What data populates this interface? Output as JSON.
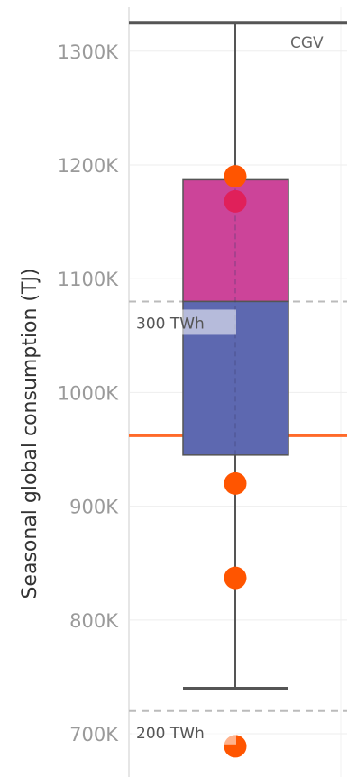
{
  "chart_data": {
    "type": "box",
    "ylabel": "Seasonal global consumption (TJ)",
    "yticks": [
      {
        "value": 700000,
        "label": "700K"
      },
      {
        "value": 800000,
        "label": "800K"
      },
      {
        "value": 900000,
        "label": "900K"
      },
      {
        "value": 1000000,
        "label": "1000K"
      },
      {
        "value": 1100000,
        "label": "1100K"
      },
      {
        "value": 1200000,
        "label": "1200K"
      },
      {
        "value": 1300000,
        "label": "1300K"
      }
    ],
    "ylim": [
      662000,
      1345000
    ],
    "grid": true,
    "box": {
      "whisker_low": 740000,
      "q1": 945000,
      "median": 1080000,
      "q3": 1187000,
      "whisker_high": 1325000,
      "upper_color": "#cc4499",
      "lower_color": "#5d68b0"
    },
    "points": [
      {
        "y": 1190000,
        "color": "#ff5500"
      },
      {
        "y": 1168000,
        "color": "#e0205a"
      },
      {
        "y": 920000,
        "color": "#ff5500"
      },
      {
        "y": 837000,
        "color": "#ff5500"
      },
      {
        "y": 689000,
        "color": "#ff5500"
      }
    ],
    "reference_lines": [
      {
        "y": 1080000,
        "label": "300 TWh",
        "style": "dashed",
        "color": "#bbbbbb"
      },
      {
        "y": 720000,
        "label": "200 TWh",
        "style": "dashed",
        "color": "#bbbbbb"
      },
      {
        "y": 962000,
        "label": "",
        "style": "solid",
        "color": "#ff6a2a"
      }
    ],
    "annotations": [
      {
        "text": "CGV",
        "y": 1325000
      }
    ]
  }
}
